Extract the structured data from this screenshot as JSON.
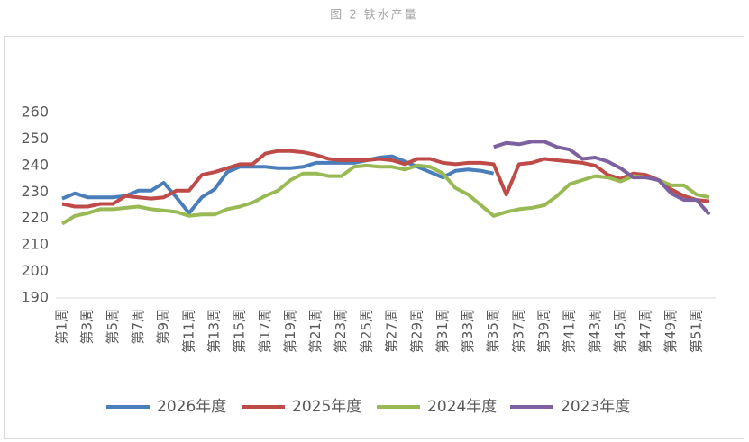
{
  "chart_data": {
    "type": "line",
    "title": "图 2 铁水产量",
    "categories": [
      "第1周",
      null,
      "第3周",
      null,
      "第5周",
      null,
      "第7周",
      null,
      "第9周",
      null,
      "第11周",
      null,
      "第13周",
      null,
      "第15周",
      null,
      "第17周",
      null,
      "第19周",
      null,
      "第21周",
      null,
      "第23周",
      null,
      "第25周",
      null,
      "第27周",
      null,
      "第29周",
      null,
      "第31周",
      null,
      "第33周",
      null,
      "第35周",
      null,
      "第37周",
      null,
      "第39周",
      null,
      "第41周",
      null,
      "第43周",
      null,
      "第45周",
      null,
      "第47周",
      null,
      "第49周",
      null,
      "第51周",
      null
    ],
    "series": [
      {
        "name": "2026年度",
        "color": "#4a7ebb",
        "values": [
          227.5,
          229.5,
          228,
          228,
          228,
          228.5,
          230.5,
          230.5,
          233.5,
          228,
          222,
          228,
          231,
          237.5,
          239.5,
          239.5,
          239.5,
          239,
          239,
          239.5,
          241,
          241,
          241,
          241,
          242,
          243,
          243.5,
          241.5,
          239.5,
          237.5,
          235.5,
          238,
          238.5,
          238,
          237,
          null,
          null,
          null,
          null,
          null,
          null,
          null,
          null,
          null,
          null,
          null,
          null,
          null,
          null,
          null,
          null,
          null
        ]
      },
      {
        "name": "2025年度",
        "color": "#be4b48",
        "values": [
          225.5,
          224.5,
          224.5,
          225.5,
          225.5,
          228.5,
          228,
          227.5,
          228,
          230.5,
          230.5,
          236.5,
          237.5,
          239,
          240.5,
          240.5,
          244.5,
          245.5,
          245.5,
          245,
          244,
          242.5,
          242,
          242,
          242,
          242.5,
          242,
          240.5,
          242.5,
          242.5,
          241,
          240.5,
          241,
          241,
          240.5,
          229,
          240.5,
          241,
          242.5,
          242,
          241.5,
          241,
          240,
          236.5,
          235,
          237,
          236.5,
          234.5,
          231,
          228.5,
          227,
          226.5
        ]
      },
      {
        "name": "2024年度",
        "color": "#98b954",
        "values": [
          218,
          221,
          222,
          223.5,
          223.5,
          224,
          224.5,
          223.5,
          223,
          222.5,
          221,
          221.5,
          221.5,
          223.5,
          224.5,
          226,
          228.5,
          230.5,
          234.5,
          237,
          237,
          236,
          236,
          239.5,
          240,
          239.5,
          239.5,
          238.5,
          240,
          239.5,
          237,
          231.5,
          229,
          225,
          221,
          222.5,
          223.5,
          224,
          225,
          228.5,
          233,
          234.5,
          236,
          235.5,
          234,
          236,
          235.5,
          234.5,
          232.5,
          232.5,
          229,
          228
        ]
      },
      {
        "name": "2023年度",
        "color": "#7d60a0",
        "values": [
          null,
          null,
          null,
          null,
          null,
          null,
          null,
          null,
          null,
          null,
          null,
          null,
          null,
          null,
          null,
          null,
          null,
          null,
          null,
          null,
          null,
          null,
          null,
          null,
          null,
          null,
          null,
          null,
          null,
          null,
          null,
          null,
          null,
          null,
          247,
          248.5,
          248,
          249,
          249,
          247,
          246,
          242.5,
          243,
          241.5,
          239,
          235.5,
          235.5,
          234.5,
          229.5,
          227,
          227,
          221.5
        ]
      }
    ],
    "ylim": [
      190,
      260
    ],
    "yticks": [
      190,
      200,
      210,
      220,
      230,
      240,
      250,
      260
    ]
  }
}
